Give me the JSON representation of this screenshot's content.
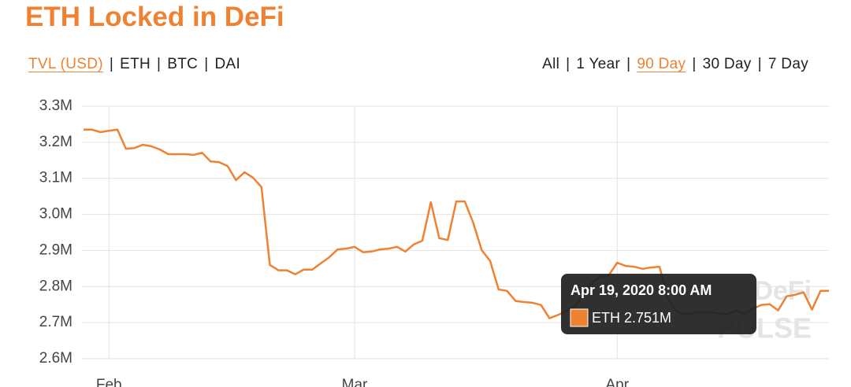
{
  "header": {
    "title": "ETH Locked in DeFi"
  },
  "metric_tabs": {
    "items": [
      "TVL (USD)",
      "ETH",
      "BTC",
      "DAI"
    ],
    "selected": 0
  },
  "range_tabs": {
    "items": [
      "All",
      "1 Year",
      "90 Day",
      "30 Day",
      "7 Day"
    ],
    "selected": 2
  },
  "chart_data": {
    "type": "line",
    "color": "#ee8232",
    "categories": [
      null,
      null,
      null,
      "Feb",
      null,
      null,
      null,
      null,
      null,
      null,
      null,
      null,
      null,
      null,
      null,
      null,
      null,
      null,
      null,
      null,
      null,
      null,
      null,
      null,
      null,
      null,
      null,
      null,
      null,
      null,
      null,
      null,
      "Mar",
      null,
      null,
      null,
      null,
      null,
      null,
      null,
      null,
      null,
      null,
      null,
      null,
      null,
      null,
      null,
      null,
      null,
      null,
      null,
      null,
      null,
      null,
      null,
      null,
      null,
      null,
      null,
      null,
      null,
      null,
      "Apr",
      null,
      null,
      null,
      null,
      null,
      null,
      null,
      null,
      null,
      null,
      null,
      null,
      null,
      null,
      null,
      null,
      null,
      null,
      null,
      null,
      null,
      null,
      null,
      null,
      null
    ],
    "values": [
      3.235,
      3.235,
      3.228,
      3.232,
      3.235,
      3.182,
      3.184,
      3.193,
      3.189,
      3.18,
      3.167,
      3.167,
      3.167,
      3.165,
      3.171,
      3.147,
      3.145,
      3.134,
      3.095,
      3.117,
      3.102,
      3.076,
      2.86,
      2.845,
      2.845,
      2.834,
      2.847,
      2.847,
      2.864,
      2.881,
      2.903,
      2.905,
      2.91,
      2.895,
      2.897,
      2.903,
      2.905,
      2.91,
      2.897,
      2.917,
      2.927,
      3.034,
      2.934,
      2.929,
      3.036,
      3.036,
      2.977,
      2.901,
      2.871,
      2.792,
      2.788,
      2.76,
      2.757,
      2.755,
      2.749,
      2.712,
      2.721,
      2.732,
      2.745,
      2.777,
      2.81,
      2.827,
      2.831,
      2.866,
      2.857,
      2.855,
      2.849,
      2.853,
      2.855,
      2.766,
      2.732,
      2.723,
      2.727,
      2.729,
      2.729,
      2.725,
      2.723,
      2.734,
      2.723,
      2.738,
      2.749,
      2.751,
      2.734,
      2.773,
      2.777,
      2.784,
      2.736,
      2.788,
      2.788
    ],
    "ylim": [
      2.6,
      3.3
    ],
    "yticks": [
      {
        "value": 2.6,
        "label": "2.6M"
      },
      {
        "value": 2.7,
        "label": "2.7M"
      },
      {
        "value": 2.8,
        "label": "2.8M"
      },
      {
        "value": 2.9,
        "label": "2.9M"
      },
      {
        "value": 3.0,
        "label": "3.0M"
      },
      {
        "value": 3.1,
        "label": "3.1M"
      },
      {
        "value": 3.2,
        "label": "3.2M"
      },
      {
        "value": 3.3,
        "label": "3.3M"
      }
    ],
    "grid": true,
    "watermark": [
      "DeFi",
      "PULSE"
    ],
    "tooltip": {
      "title": "Apr 19, 2020 8:00 AM",
      "text": "ETH 2.751M"
    }
  }
}
